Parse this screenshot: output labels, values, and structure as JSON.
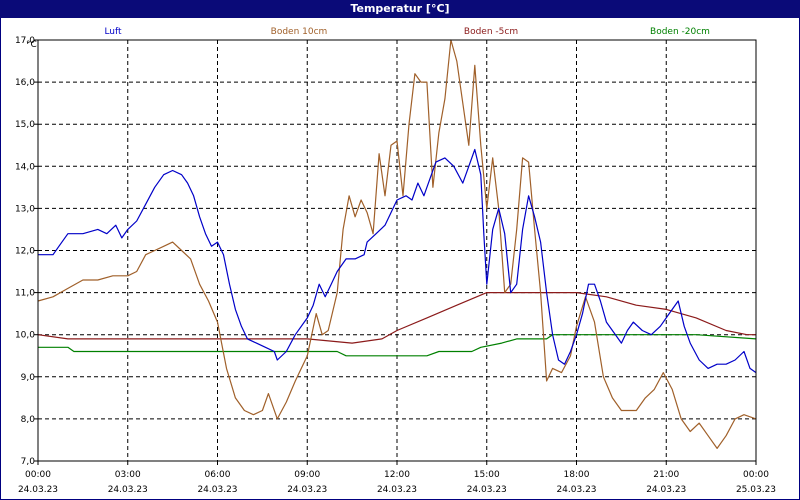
{
  "window": {
    "title": "Temperatur [°C]"
  },
  "chart_data": {
    "type": "line",
    "title": "Temperatur [°C]",
    "ylabel": "°C",
    "ylim": [
      7.0,
      17.0
    ],
    "yticks": [
      "7,0",
      "8,0",
      "9,0",
      "10,0",
      "11,0",
      "12,0",
      "13,0",
      "14,0",
      "15,0",
      "16,0",
      "17,0"
    ],
    "xlim": [
      0,
      24
    ],
    "xticks": [
      {
        "time": "00:00",
        "date": "24.03.23"
      },
      {
        "time": "03:00",
        "date": "24.03.23"
      },
      {
        "time": "06:00",
        "date": "24.03.23"
      },
      {
        "time": "09:00",
        "date": "24.03.23"
      },
      {
        "time": "12:00",
        "date": "24.03.23"
      },
      {
        "time": "15:00",
        "date": "24.03.23"
      },
      {
        "time": "18:00",
        "date": "24.03.23"
      },
      {
        "time": "21:00",
        "date": "24.03.23"
      },
      {
        "time": "00:00",
        "date": "25.03.23"
      }
    ],
    "grid": true,
    "legend_position": "top",
    "series": [
      {
        "name": "Luft",
        "color": "#0000c8",
        "points": [
          [
            0,
            11.9
          ],
          [
            0.5,
            11.9
          ],
          [
            0.7,
            12.1
          ],
          [
            1,
            12.4
          ],
          [
            1.5,
            12.4
          ],
          [
            2,
            12.5
          ],
          [
            2.3,
            12.4
          ],
          [
            2.6,
            12.6
          ],
          [
            2.8,
            12.3
          ],
          [
            3,
            12.5
          ],
          [
            3.3,
            12.7
          ],
          [
            3.6,
            13.1
          ],
          [
            3.9,
            13.5
          ],
          [
            4.2,
            13.8
          ],
          [
            4.5,
            13.9
          ],
          [
            4.8,
            13.8
          ],
          [
            5,
            13.6
          ],
          [
            5.2,
            13.3
          ],
          [
            5.4,
            12.8
          ],
          [
            5.6,
            12.4
          ],
          [
            5.8,
            12.1
          ],
          [
            6,
            12.2
          ],
          [
            6.2,
            11.9
          ],
          [
            6.4,
            11.2
          ],
          [
            6.6,
            10.6
          ],
          [
            6.8,
            10.2
          ],
          [
            7,
            9.9
          ],
          [
            7.3,
            9.8
          ],
          [
            7.6,
            9.7
          ],
          [
            7.9,
            9.6
          ],
          [
            8,
            9.4
          ],
          [
            8.3,
            9.6
          ],
          [
            8.6,
            10
          ],
          [
            9,
            10.4
          ],
          [
            9.2,
            10.7
          ],
          [
            9.4,
            11.2
          ],
          [
            9.6,
            10.9
          ],
          [
            9.8,
            11.2
          ],
          [
            10,
            11.5
          ],
          [
            10.3,
            11.8
          ],
          [
            10.6,
            11.8
          ],
          [
            10.9,
            11.9
          ],
          [
            11,
            12.2
          ],
          [
            11.3,
            12.4
          ],
          [
            11.6,
            12.6
          ],
          [
            11.8,
            12.9
          ],
          [
            12,
            13.2
          ],
          [
            12.3,
            13.3
          ],
          [
            12.5,
            13.2
          ],
          [
            12.7,
            13.6
          ],
          [
            12.9,
            13.3
          ],
          [
            13,
            13.5
          ],
          [
            13.3,
            14.1
          ],
          [
            13.6,
            14.2
          ],
          [
            13.9,
            14
          ],
          [
            14.2,
            13.6
          ],
          [
            14.4,
            14
          ],
          [
            14.6,
            14.4
          ],
          [
            14.8,
            13.8
          ],
          [
            14.9,
            12.4
          ],
          [
            15,
            11.2
          ],
          [
            15.2,
            12.5
          ],
          [
            15.4,
            13.0
          ],
          [
            15.6,
            12.4
          ],
          [
            15.8,
            11.0
          ],
          [
            16,
            11.2
          ],
          [
            16.2,
            12.5
          ],
          [
            16.4,
            13.3
          ],
          [
            16.6,
            12.8
          ],
          [
            16.8,
            12.2
          ],
          [
            17,
            11
          ],
          [
            17.2,
            10
          ],
          [
            17.4,
            9.4
          ],
          [
            17.6,
            9.3
          ],
          [
            17.8,
            9.6
          ],
          [
            18,
            10
          ],
          [
            18.2,
            10.5
          ],
          [
            18.4,
            11.2
          ],
          [
            18.6,
            11.2
          ],
          [
            18.8,
            10.8
          ],
          [
            19,
            10.3
          ],
          [
            19.2,
            10.1
          ],
          [
            19.5,
            9.8
          ],
          [
            19.7,
            10.1
          ],
          [
            19.9,
            10.3
          ],
          [
            20.2,
            10.1
          ],
          [
            20.5,
            10.0
          ],
          [
            20.8,
            10.2
          ],
          [
            21.1,
            10.5
          ],
          [
            21.4,
            10.8
          ],
          [
            21.6,
            10.2
          ],
          [
            21.8,
            9.8
          ],
          [
            22.1,
            9.4
          ],
          [
            22.4,
            9.2
          ],
          [
            22.7,
            9.3
          ],
          [
            23,
            9.3
          ],
          [
            23.3,
            9.4
          ],
          [
            23.6,
            9.6
          ],
          [
            23.8,
            9.2
          ],
          [
            24,
            9.1
          ]
        ]
      },
      {
        "name": "Boden 10cm",
        "color": "#a0602a",
        "points": [
          [
            0,
            10.8
          ],
          [
            0.5,
            10.9
          ],
          [
            1,
            11.1
          ],
          [
            1.5,
            11.3
          ],
          [
            2,
            11.3
          ],
          [
            2.5,
            11.4
          ],
          [
            3,
            11.4
          ],
          [
            3.3,
            11.5
          ],
          [
            3.6,
            11.9
          ],
          [
            3.9,
            12.0
          ],
          [
            4.2,
            12.1
          ],
          [
            4.5,
            12.2
          ],
          [
            4.8,
            12.0
          ],
          [
            5.1,
            11.8
          ],
          [
            5.4,
            11.2
          ],
          [
            5.7,
            10.8
          ],
          [
            6,
            10.3
          ],
          [
            6.3,
            9.2
          ],
          [
            6.6,
            8.5
          ],
          [
            6.9,
            8.2
          ],
          [
            7.2,
            8.1
          ],
          [
            7.5,
            8.2
          ],
          [
            7.7,
            8.6
          ],
          [
            8,
            8.0
          ],
          [
            8.3,
            8.4
          ],
          [
            8.6,
            8.9
          ],
          [
            9,
            9.5
          ],
          [
            9.3,
            10.5
          ],
          [
            9.5,
            10.0
          ],
          [
            9.7,
            10.1
          ],
          [
            10,
            11.0
          ],
          [
            10.2,
            12.5
          ],
          [
            10.4,
            13.3
          ],
          [
            10.6,
            12.8
          ],
          [
            10.8,
            13.2
          ],
          [
            11,
            12.9
          ],
          [
            11.2,
            12.4
          ],
          [
            11.4,
            14.3
          ],
          [
            11.6,
            13.3
          ],
          [
            11.8,
            14.5
          ],
          [
            12,
            14.6
          ],
          [
            12.2,
            13.3
          ],
          [
            12.4,
            15.0
          ],
          [
            12.6,
            16.2
          ],
          [
            12.8,
            16.0
          ],
          [
            13,
            16.0
          ],
          [
            13.2,
            13.5
          ],
          [
            13.4,
            14.8
          ],
          [
            13.6,
            15.6
          ],
          [
            13.8,
            17.0
          ],
          [
            14,
            16.5
          ],
          [
            14.2,
            15.5
          ],
          [
            14.4,
            14.5
          ],
          [
            14.6,
            16.4
          ],
          [
            14.8,
            14.5
          ],
          [
            15,
            13.0
          ],
          [
            15.2,
            14.2
          ],
          [
            15.4,
            13.0
          ],
          [
            15.6,
            11.0
          ],
          [
            15.8,
            11.2
          ],
          [
            16,
            12.5
          ],
          [
            16.2,
            14.2
          ],
          [
            16.4,
            14.1
          ],
          [
            16.6,
            12.5
          ],
          [
            16.8,
            11.0
          ],
          [
            17,
            8.9
          ],
          [
            17.2,
            9.2
          ],
          [
            17.5,
            9.1
          ],
          [
            17.8,
            9.5
          ],
          [
            18,
            10.2
          ],
          [
            18.3,
            10.9
          ],
          [
            18.6,
            10.3
          ],
          [
            18.9,
            9.0
          ],
          [
            19.2,
            8.5
          ],
          [
            19.5,
            8.2
          ],
          [
            20,
            8.2
          ],
          [
            20.3,
            8.5
          ],
          [
            20.6,
            8.7
          ],
          [
            20.9,
            9.1
          ],
          [
            21.2,
            8.7
          ],
          [
            21.5,
            8.0
          ],
          [
            21.8,
            7.7
          ],
          [
            22.1,
            7.9
          ],
          [
            22.4,
            7.6
          ],
          [
            22.7,
            7.3
          ],
          [
            23,
            7.6
          ],
          [
            23.3,
            8.0
          ],
          [
            23.6,
            8.1
          ],
          [
            24,
            8.0
          ]
        ]
      },
      {
        "name": "Boden -5cm",
        "color": "#8b1a1a",
        "points": [
          [
            0,
            10.0
          ],
          [
            1,
            9.9
          ],
          [
            3,
            9.9
          ],
          [
            6,
            9.9
          ],
          [
            9,
            9.9
          ],
          [
            10.5,
            9.8
          ],
          [
            11.5,
            9.9
          ],
          [
            12,
            10.1
          ],
          [
            13,
            10.4
          ],
          [
            14,
            10.7
          ],
          [
            15,
            11.0
          ],
          [
            18,
            11.0
          ],
          [
            19,
            10.9
          ],
          [
            20,
            10.7
          ],
          [
            21,
            10.6
          ],
          [
            22,
            10.4
          ],
          [
            23,
            10.1
          ],
          [
            23.7,
            10.0
          ],
          [
            24,
            10.0
          ]
        ]
      },
      {
        "name": "Boden -20cm",
        "color": "#008000",
        "points": [
          [
            0,
            9.7
          ],
          [
            1,
            9.7
          ],
          [
            1.2,
            9.6
          ],
          [
            9,
            9.6
          ],
          [
            10,
            9.6
          ],
          [
            10.3,
            9.5
          ],
          [
            13,
            9.5
          ],
          [
            13.4,
            9.6
          ],
          [
            14.5,
            9.6
          ],
          [
            14.8,
            9.7
          ],
          [
            15.5,
            9.8
          ],
          [
            16,
            9.9
          ],
          [
            17,
            9.9
          ],
          [
            17.2,
            10.0
          ],
          [
            18,
            10.0
          ],
          [
            22,
            10.0
          ],
          [
            24,
            9.9
          ]
        ]
      }
    ]
  }
}
